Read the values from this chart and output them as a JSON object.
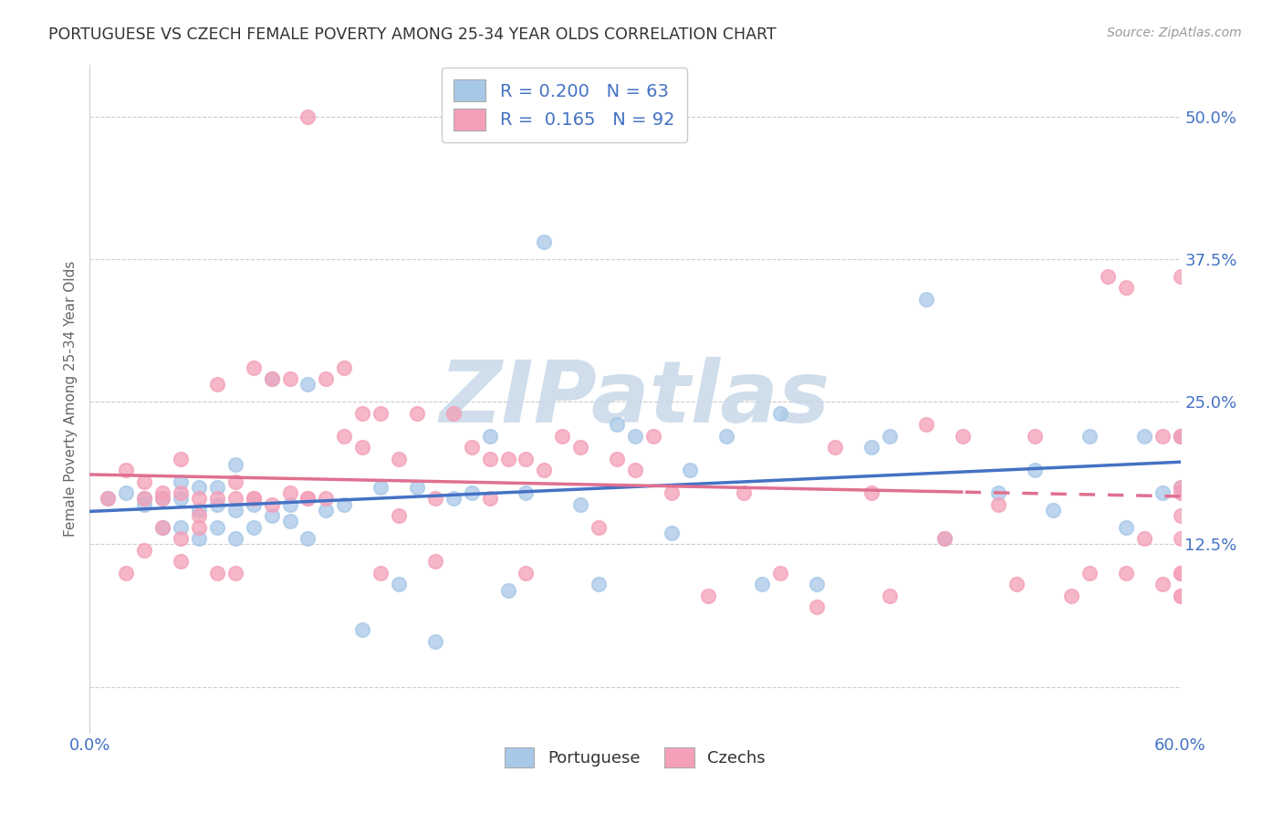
{
  "title": "PORTUGUESE VS CZECH FEMALE POVERTY AMONG 25-34 YEAR OLDS CORRELATION CHART",
  "source": "Source: ZipAtlas.com",
  "ylabel": "Female Poverty Among 25-34 Year Olds",
  "xlim": [
    0.0,
    0.6
  ],
  "ylim": [
    -0.04,
    0.545
  ],
  "yticks": [
    0.0,
    0.125,
    0.25,
    0.375,
    0.5
  ],
  "ytick_labels": [
    "",
    "12.5%",
    "25.0%",
    "37.5%",
    "50.0%"
  ],
  "xtick_vals": [
    0.0,
    0.1,
    0.2,
    0.3,
    0.4,
    0.5,
    0.6
  ],
  "xtick_labels": [
    "0.0%",
    "",
    "",
    "",
    "",
    "",
    "60.0%"
  ],
  "r_portuguese": 0.2,
  "n_portuguese": 63,
  "r_czech": 0.165,
  "n_czech": 92,
  "color_portuguese": "#a8c8e8",
  "color_czech": "#f4a0b8",
  "color_line_portuguese": "#4472c4",
  "color_line_czech": "#e07090",
  "color_blue_text": "#4472c4",
  "background_color": "#ffffff",
  "grid_color": "#cccccc",
  "watermark": "ZIPatlas",
  "watermark_color_zip": "#c0cfe0",
  "watermark_color_atlas": "#b8c8d8",
  "portuguese_x": [
    0.01,
    0.02,
    0.03,
    0.03,
    0.04,
    0.04,
    0.05,
    0.05,
    0.05,
    0.06,
    0.06,
    0.06,
    0.07,
    0.07,
    0.07,
    0.08,
    0.08,
    0.08,
    0.09,
    0.09,
    0.1,
    0.1,
    0.11,
    0.11,
    0.12,
    0.12,
    0.13,
    0.14,
    0.15,
    0.16,
    0.17,
    0.18,
    0.19,
    0.2,
    0.21,
    0.22,
    0.23,
    0.24,
    0.25,
    0.27,
    0.28,
    0.29,
    0.3,
    0.32,
    0.33,
    0.35,
    0.37,
    0.38,
    0.4,
    0.43,
    0.44,
    0.46,
    0.47,
    0.5,
    0.52,
    0.53,
    0.55,
    0.57,
    0.58,
    0.59,
    0.6,
    0.6,
    0.6
  ],
  "portuguese_y": [
    0.165,
    0.17,
    0.16,
    0.165,
    0.14,
    0.165,
    0.14,
    0.165,
    0.18,
    0.13,
    0.155,
    0.175,
    0.14,
    0.16,
    0.175,
    0.13,
    0.155,
    0.195,
    0.14,
    0.16,
    0.15,
    0.27,
    0.145,
    0.16,
    0.13,
    0.265,
    0.155,
    0.16,
    0.05,
    0.175,
    0.09,
    0.175,
    0.04,
    0.165,
    0.17,
    0.22,
    0.085,
    0.17,
    0.39,
    0.16,
    0.09,
    0.23,
    0.22,
    0.135,
    0.19,
    0.22,
    0.09,
    0.24,
    0.09,
    0.21,
    0.22,
    0.34,
    0.13,
    0.17,
    0.19,
    0.155,
    0.22,
    0.14,
    0.22,
    0.17,
    0.22,
    0.175,
    0.22
  ],
  "czech_x": [
    0.01,
    0.02,
    0.02,
    0.03,
    0.03,
    0.03,
    0.04,
    0.04,
    0.04,
    0.05,
    0.05,
    0.05,
    0.05,
    0.06,
    0.06,
    0.06,
    0.07,
    0.07,
    0.07,
    0.08,
    0.08,
    0.08,
    0.09,
    0.09,
    0.09,
    0.1,
    0.1,
    0.11,
    0.11,
    0.12,
    0.12,
    0.12,
    0.13,
    0.13,
    0.14,
    0.14,
    0.15,
    0.15,
    0.16,
    0.16,
    0.17,
    0.17,
    0.18,
    0.19,
    0.19,
    0.2,
    0.21,
    0.22,
    0.22,
    0.23,
    0.24,
    0.24,
    0.25,
    0.26,
    0.27,
    0.28,
    0.29,
    0.3,
    0.31,
    0.32,
    0.34,
    0.36,
    0.38,
    0.4,
    0.41,
    0.43,
    0.44,
    0.46,
    0.47,
    0.48,
    0.5,
    0.51,
    0.52,
    0.54,
    0.55,
    0.56,
    0.57,
    0.57,
    0.58,
    0.59,
    0.59,
    0.6,
    0.6,
    0.6,
    0.6,
    0.6,
    0.6,
    0.6,
    0.6,
    0.6,
    0.6,
    0.6
  ],
  "czech_y": [
    0.165,
    0.1,
    0.19,
    0.12,
    0.165,
    0.18,
    0.165,
    0.14,
    0.17,
    0.13,
    0.17,
    0.2,
    0.11,
    0.14,
    0.165,
    0.15,
    0.1,
    0.165,
    0.265,
    0.1,
    0.165,
    0.18,
    0.165,
    0.28,
    0.165,
    0.16,
    0.27,
    0.17,
    0.27,
    0.165,
    0.5,
    0.165,
    0.27,
    0.165,
    0.22,
    0.28,
    0.21,
    0.24,
    0.1,
    0.24,
    0.15,
    0.2,
    0.24,
    0.11,
    0.165,
    0.24,
    0.21,
    0.165,
    0.2,
    0.2,
    0.1,
    0.2,
    0.19,
    0.22,
    0.21,
    0.14,
    0.2,
    0.19,
    0.22,
    0.17,
    0.08,
    0.17,
    0.1,
    0.07,
    0.21,
    0.17,
    0.08,
    0.23,
    0.13,
    0.22,
    0.16,
    0.09,
    0.22,
    0.08,
    0.1,
    0.36,
    0.1,
    0.35,
    0.13,
    0.22,
    0.09,
    0.15,
    0.22,
    0.17,
    0.08,
    0.1,
    0.36,
    0.13,
    0.22,
    0.175,
    0.08,
    0.1
  ],
  "dashed_split": 0.48
}
